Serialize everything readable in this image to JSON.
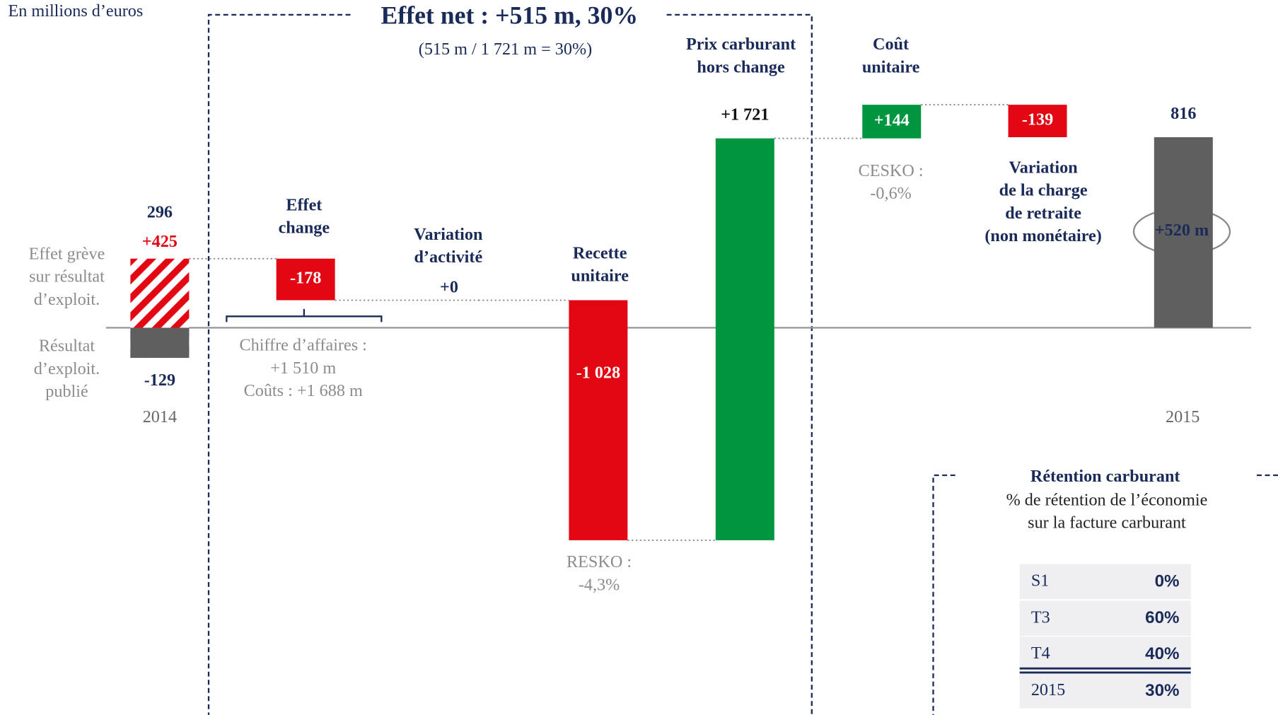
{
  "chart_data": {
    "type": "waterfall",
    "unit_label": "En millions d’euros",
    "title": "Effet net : +515 m, 30%",
    "subtitle": "(515 m / 1 721 m = 30%)",
    "colors": {
      "increase": "#00963f",
      "decrease": "#e30613",
      "total": "#5f5f5f",
      "strike": "#e30613"
    },
    "steps": [
      {
        "name": "2014",
        "kind": "base",
        "value": -129,
        "note": [
          "Résultat",
          "d’exploit.",
          "publié"
        ]
      },
      {
        "kind": "strike",
        "value": 425,
        "value_label": "+425",
        "total": 296,
        "note": [
          "Effet grève",
          "sur résultat",
          "d’exploit."
        ]
      },
      {
        "name": [
          "Effet",
          "change"
        ],
        "kind": "delta",
        "value": -178,
        "note": [
          "Chiffre d’affaires :",
          "+1 510 m",
          "Coûts : +1 688 m"
        ]
      },
      {
        "name": [
          "Variation",
          "d’activité"
        ],
        "kind": "delta",
        "value": 0,
        "value_label": "+0"
      },
      {
        "name": [
          "Recette",
          "unitaire"
        ],
        "kind": "delta",
        "value": -1028,
        "value_label": "-1 028",
        "note": [
          "RESKO :",
          "-4,3%"
        ]
      },
      {
        "name": [
          "Prix carburant",
          "hors change"
        ],
        "kind": "delta",
        "value": 1721,
        "value_label": "+1 721"
      },
      {
        "name": [
          "Coût",
          "unitaire"
        ],
        "kind": "delta",
        "value": 144,
        "value_label": "+144",
        "note": [
          "CESKO :",
          "-0,6%"
        ]
      },
      {
        "name": [
          "Variation",
          "de la charge",
          "de retraite",
          "(non monétaire)"
        ],
        "kind": "delta",
        "value": -139
      },
      {
        "name": "2015",
        "kind": "total",
        "value": 816,
        "badge": "+520 m"
      }
    ],
    "retention": {
      "title": "Rétention carburant",
      "subtitle": [
        "% de rétention de l’économie",
        "sur la facture carburant"
      ],
      "rows": [
        [
          "S1",
          "0%"
        ],
        [
          "T3",
          "60%"
        ],
        [
          "T4",
          "40%"
        ],
        [
          "2015",
          "30%"
        ]
      ]
    }
  }
}
